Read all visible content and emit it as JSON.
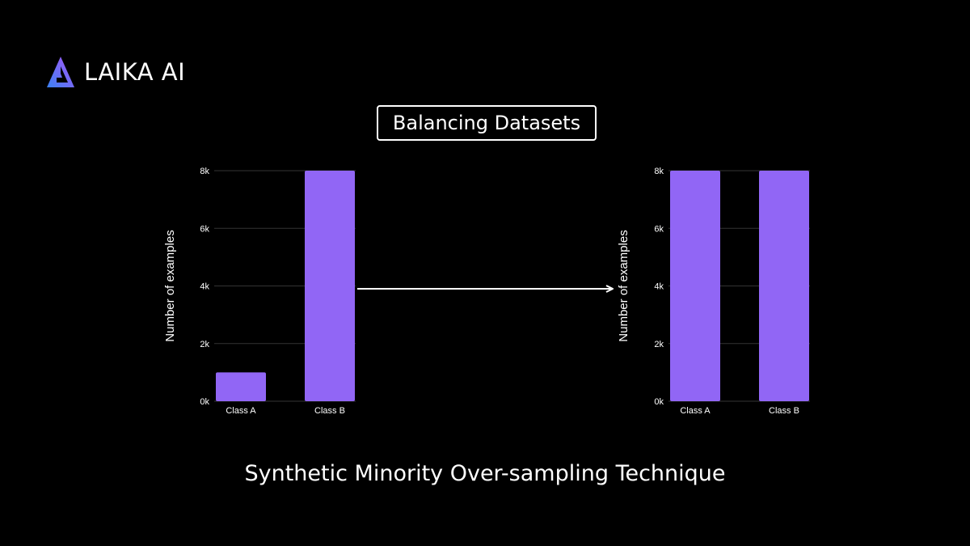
{
  "brand": {
    "name": "LAIKA AI",
    "logo_icon": "triangle-a-icon",
    "logo_gradient": [
      "#3b82f6",
      "#a855f7"
    ]
  },
  "title": "Balancing Datasets",
  "subtitle": "Synthetic Minority Over-sampling Technique",
  "colors": {
    "background": "#000000",
    "bar": "#9166f5",
    "grid": "#333333",
    "text": "#ffffff"
  },
  "chart_data": [
    {
      "type": "bar",
      "categories": [
        "Class A",
        "Class B"
      ],
      "values": [
        1000,
        8000
      ],
      "ylabel": "Number of examples",
      "xlabel": "",
      "ylim": [
        0,
        8000
      ],
      "yticks": [
        0,
        2000,
        4000,
        6000,
        8000
      ],
      "ytick_labels": [
        "0k",
        "2k",
        "4k",
        "6k",
        "8k"
      ],
      "grid": true
    },
    {
      "type": "bar",
      "categories": [
        "Class A",
        "Class B"
      ],
      "values": [
        8000,
        8000
      ],
      "ylabel": "Number of examples",
      "xlabel": "",
      "ylim": [
        0,
        8000
      ],
      "yticks": [
        0,
        2000,
        4000,
        6000,
        8000
      ],
      "ytick_labels": [
        "0k",
        "2k",
        "4k",
        "6k",
        "8k"
      ],
      "grid": true
    }
  ],
  "arrow": {
    "icon": "arrow-right-icon"
  }
}
